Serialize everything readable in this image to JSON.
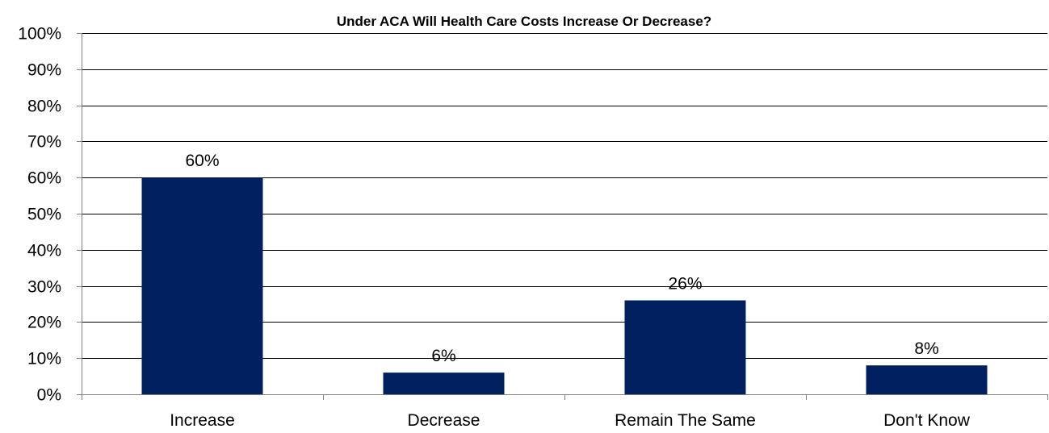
{
  "chart_data": {
    "type": "bar",
    "title": "Under ACA Will Health Care Costs Increase Or Decrease?",
    "xlabel": "",
    "ylabel": "",
    "categories": [
      "Increase",
      "Decrease",
      "Remain The Same",
      "Don't Know"
    ],
    "values": [
      60,
      6,
      26,
      8
    ],
    "data_labels": [
      "60%",
      "6%",
      "26%",
      "8%"
    ],
    "ylim": [
      0,
      100
    ],
    "yticks": [
      0,
      10,
      20,
      30,
      40,
      50,
      60,
      70,
      80,
      90,
      100
    ],
    "ytick_labels": [
      "0%",
      "10%",
      "20%",
      "30%",
      "40%",
      "50%",
      "60%",
      "70%",
      "80%",
      "90%",
      "100%"
    ],
    "grid": true,
    "legend": "none",
    "colors": {
      "bar": "#002060",
      "grid": "#000000",
      "axis": "#808080",
      "text": "#000000"
    }
  }
}
